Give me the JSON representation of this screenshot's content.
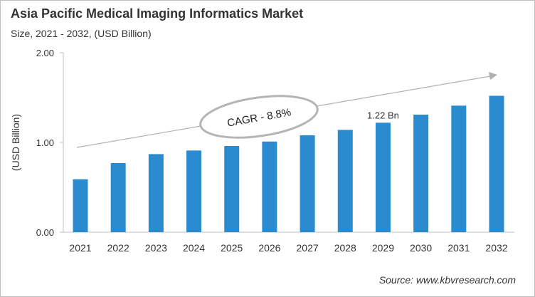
{
  "title": "Asia Pacific Medical Imaging Informatics Market",
  "subtitle": "Size, 2021 - 2032, (USD Billion)",
  "source": "Source: www.kbvresearch.com",
  "chart_data": {
    "type": "bar",
    "categories": [
      "2021",
      "2022",
      "2023",
      "2024",
      "2025",
      "2026",
      "2027",
      "2028",
      "2029",
      "2030",
      "2031",
      "2032"
    ],
    "values": [
      0.59,
      0.77,
      0.87,
      0.91,
      0.96,
      1.01,
      1.08,
      1.14,
      1.22,
      1.31,
      1.41,
      1.52
    ],
    "ylabel": "(USD Billion)",
    "xlabel": "",
    "ylim": [
      0,
      2
    ],
    "yticks": [
      "0.00",
      "1.00",
      "2.00"
    ],
    "grid": false,
    "bar_color": "#2a8ccf",
    "annotations": {
      "data_label": {
        "category": "2029",
        "text": "1.22 Bn"
      },
      "cagr": "CAGR - 8.8%"
    }
  }
}
